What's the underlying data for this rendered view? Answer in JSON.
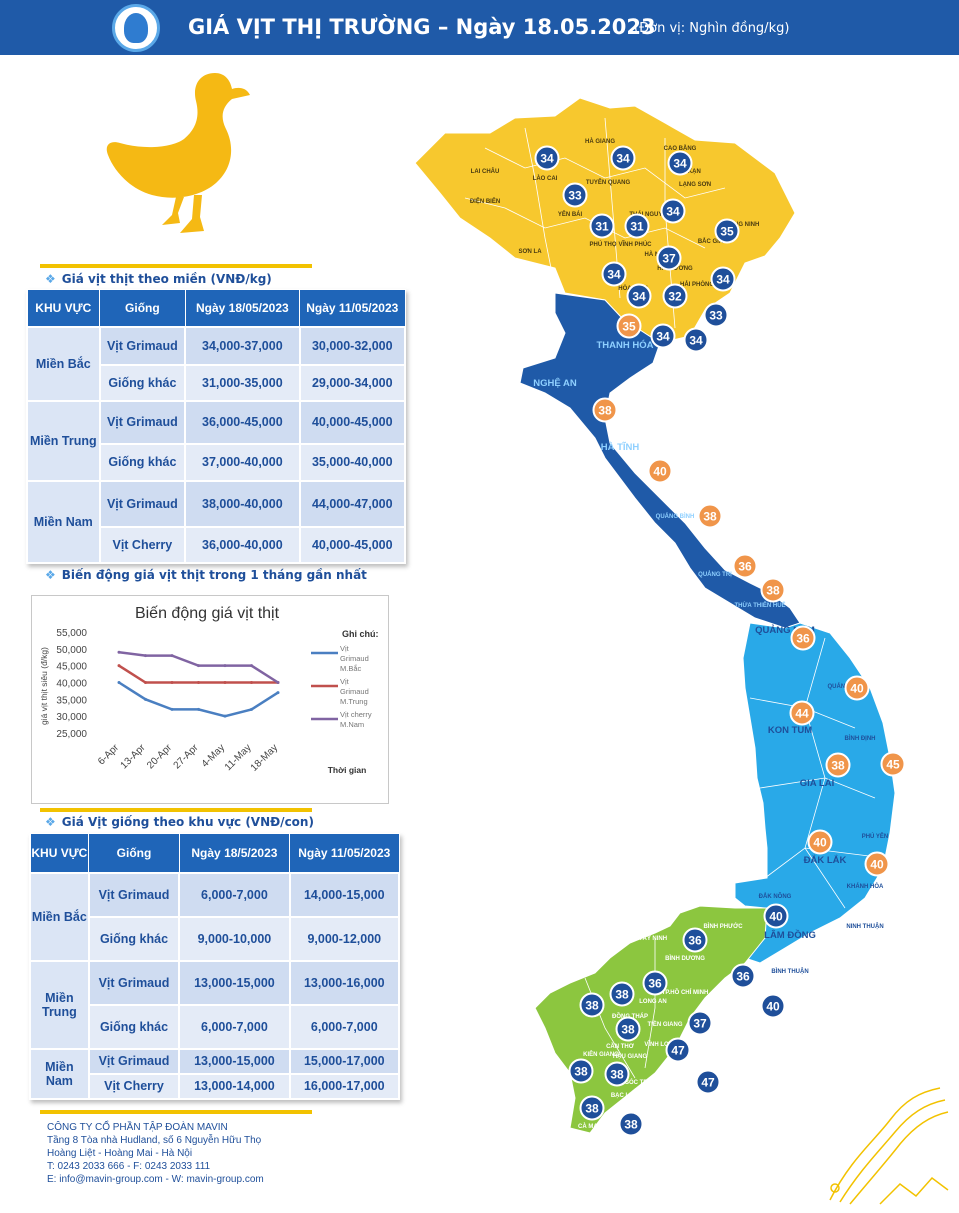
{
  "header": {
    "title": "GIÁ VỊT THỊ TRƯỜNG – Ngày 18.05.2023",
    "unit": "(Đơn vị: Nghìn đồng/kg)"
  },
  "section1": {
    "label": "Giá vịt thịt theo miền (VNĐ/kg)",
    "headers": [
      "KHU VỰC",
      "Giống",
      "Ngày 18/05/2023",
      "Ngày 11/05/2023"
    ],
    "regions": [
      {
        "name": "Miền Bắc",
        "rows": [
          {
            "breed": "Vịt Grimaud",
            "current": "34,000-37,000",
            "previous": "30,000-32,000"
          },
          {
            "breed": "Giống khác",
            "current": "31,000-35,000",
            "previous": "29,000-34,000"
          }
        ]
      },
      {
        "name": "Miền Trung",
        "rows": [
          {
            "breed": "Vịt Grimaud",
            "current": "36,000-45,000",
            "previous": "40,000-45,000"
          },
          {
            "breed": "Giống khác",
            "current": "37,000-40,000",
            "previous": "35,000-40,000"
          }
        ]
      },
      {
        "name": "Miền Nam",
        "rows": [
          {
            "breed": "Vịt Grimaud",
            "current": "38,000-40,000",
            "previous": "44,000-47,000"
          },
          {
            "breed": "Vịt Cherry",
            "current": "36,000-40,000",
            "previous": "40,000-45,000"
          }
        ]
      }
    ]
  },
  "section2": {
    "label": "Biến động giá vịt thịt trong 1 tháng gần nhất"
  },
  "chart_data": {
    "type": "line",
    "title": "Biến động giá vịt thịt",
    "ylabel": "giá vịt thịt siêu (đ/kg)",
    "xlabel": "Thời gian",
    "legend_title": "Ghi chú:",
    "legend_position": "right",
    "categories": [
      "6-Apr",
      "13-Apr",
      "20-Apr",
      "27-Apr",
      "4-May",
      "11-May",
      "18-May"
    ],
    "yticks": [
      "25,000",
      "30,000",
      "35,000",
      "40,000",
      "45,000",
      "50,000",
      "55,000"
    ],
    "ylim": [
      25000,
      55000
    ],
    "series": [
      {
        "name": "Vịt Grimaud M.Bắc",
        "color": "#4a7fc1",
        "values": [
          40000,
          35000,
          32000,
          32000,
          30000,
          32000,
          37000
        ]
      },
      {
        "name": "Vịt Grimaud M.Trung",
        "color": "#c0504d",
        "values": [
          45000,
          40000,
          40000,
          40000,
          40000,
          40000,
          40000
        ]
      },
      {
        "name": "Vịt cherry M.Nam",
        "color": "#8064a2",
        "values": [
          49000,
          48000,
          48000,
          45000,
          45000,
          45000,
          40000
        ]
      }
    ]
  },
  "section3": {
    "label": "Giá Vịt giống theo khu vực (VNĐ/con)",
    "headers": [
      "KHU VỰC",
      "Giống",
      "Ngày 18/5/2023",
      "Ngày 11/05/2023"
    ],
    "regions": [
      {
        "name": "Miền Bắc",
        "rows": [
          {
            "breed": "Vịt Grimaud",
            "current": "6,000-7,000",
            "previous": "14,000-15,000"
          },
          {
            "breed": "Giống khác",
            "current": "9,000-10,000",
            "previous": "9,000-12,000"
          }
        ]
      },
      {
        "name": "Miền Trung",
        "rows": [
          {
            "breed": "Vịt Grimaud",
            "current": "13,000-15,000",
            "previous": "13,000-16,000"
          },
          {
            "breed": "Giống khác",
            "current": "6,000-7,000",
            "previous": "6,000-7,000"
          }
        ]
      },
      {
        "name": "Miền Nam",
        "rows": [
          {
            "breed": "Vịt Grimaud",
            "current": "13,000-15,000",
            "previous": "15,000-17,000"
          },
          {
            "breed": "Vịt Cherry",
            "current": "13,000-14,000",
            "previous": "16,000-17,000"
          }
        ]
      }
    ]
  },
  "footer": {
    "company": "CÔNG TY CỔ PHẦN TẬP ĐOÀN MAVIN",
    "address1": "Tầng 8 Tòa nhà Hudland, số 6 Nguyễn Hữu Thọ",
    "address2": "Hoàng Liệt - Hoàng Mai - Hà Nội",
    "phone": "T: 0243 2033 666 - F: 0243 2033 111",
    "contact": "E: info@mavin-group.com - W: mavin-group.com"
  },
  "map": {
    "colors": {
      "north": "#f7c82e",
      "central_north": "#1f5aa8",
      "central_south": "#29a9e8",
      "south": "#8cc63f",
      "badge_dark": "#1f4f9a",
      "badge_orange": "#f0954a"
    },
    "labels": [
      {
        "text": "LAI CHÂU"
      },
      {
        "text": "HÀ GIANG"
      },
      {
        "text": "CAO BẰNG"
      },
      {
        "text": "LÀO CAI"
      },
      {
        "text": "TUYÊN QUANG"
      },
      {
        "text": "BẮC KẠN"
      },
      {
        "text": "LẠNG SƠN"
      },
      {
        "text": "ĐIỆN BIÊN"
      },
      {
        "text": "YÊN BÁI"
      },
      {
        "text": "THÁI NGUYÊN"
      },
      {
        "text": "SƠN LA"
      },
      {
        "text": "PHÚ THỌ"
      },
      {
        "text": "VĨNH PHÚC"
      },
      {
        "text": "BẮC GIANG"
      },
      {
        "text": "QUẢNG NINH"
      },
      {
        "text": "HÀ NỘI"
      },
      {
        "text": "HẢI DƯƠNG"
      },
      {
        "text": "HẢI PHÒNG"
      },
      {
        "text": "HÒA BÌNH"
      },
      {
        "text": "THANH HÓA"
      },
      {
        "text": "NGHỆ AN"
      },
      {
        "text": "HÀ TĨNH"
      },
      {
        "text": "QUẢNG BÌNH"
      },
      {
        "text": "QUẢNG TRỊ"
      },
      {
        "text": "THỪA THIÊN HUẾ"
      },
      {
        "text": "QUẢNG NAM"
      },
      {
        "text": "QUẢNG NGÃI"
      },
      {
        "text": "KON TUM"
      },
      {
        "text": "BÌNH ĐỊNH"
      },
      {
        "text": "GIA LAI"
      },
      {
        "text": "PHÚ YÊN"
      },
      {
        "text": "ĐẮK LẮK"
      },
      {
        "text": "KHÁNH HÒA"
      },
      {
        "text": "ĐẮK NÔNG"
      },
      {
        "text": "LÂM ĐỒNG"
      },
      {
        "text": "NINH THUẬN"
      },
      {
        "text": "BÌNH THUẬN"
      },
      {
        "text": "BÌNH PHƯỚC"
      },
      {
        "text": "TÂY NINH"
      },
      {
        "text": "BÌNH DƯƠNG"
      },
      {
        "text": "TP.HỒ CHÍ MINH"
      },
      {
        "text": "ĐỒNG NAI"
      },
      {
        "text": "BÀ RỊA VŨNG TÀU"
      },
      {
        "text": "ĐỒNG THÁP"
      },
      {
        "text": "LONG AN"
      },
      {
        "text": "TIỀN GIANG"
      },
      {
        "text": "CẦN THƠ"
      },
      {
        "text": "VĨNH LONG"
      },
      {
        "text": "BẾN TRE"
      },
      {
        "text": "KIÊN GIANG"
      },
      {
        "text": "HẬU GIANG"
      },
      {
        "text": "TRÀ VINH"
      },
      {
        "text": "SÓC TRĂNG"
      },
      {
        "text": "BẠC LIÊU"
      },
      {
        "text": "CÀ MAU"
      }
    ],
    "badges": [
      {
        "value": "34",
        "tone": "dark"
      },
      {
        "value": "34",
        "tone": "dark"
      },
      {
        "value": "34",
        "tone": "dark"
      },
      {
        "value": "33",
        "tone": "dark"
      },
      {
        "value": "34",
        "tone": "dark"
      },
      {
        "value": "31",
        "tone": "dark"
      },
      {
        "value": "31",
        "tone": "dark"
      },
      {
        "value": "35",
        "tone": "dark"
      },
      {
        "value": "37",
        "tone": "dark"
      },
      {
        "value": "34",
        "tone": "dark"
      },
      {
        "value": "34",
        "tone": "dark"
      },
      {
        "value": "34",
        "tone": "dark"
      },
      {
        "value": "32",
        "tone": "dark"
      },
      {
        "value": "33",
        "tone": "dark"
      },
      {
        "value": "35",
        "tone": "orange"
      },
      {
        "value": "34",
        "tone": "dark"
      },
      {
        "value": "34",
        "tone": "dark"
      },
      {
        "value": "38",
        "tone": "orange"
      },
      {
        "value": "40",
        "tone": "orange"
      },
      {
        "value": "38",
        "tone": "orange"
      },
      {
        "value": "36",
        "tone": "orange"
      },
      {
        "value": "38",
        "tone": "orange"
      },
      {
        "value": "36",
        "tone": "orange"
      },
      {
        "value": "40",
        "tone": "orange"
      },
      {
        "value": "44",
        "tone": "orange"
      },
      {
        "value": "38",
        "tone": "orange"
      },
      {
        "value": "45",
        "tone": "orange"
      },
      {
        "value": "40",
        "tone": "orange"
      },
      {
        "value": "40",
        "tone": "orange"
      },
      {
        "value": "40",
        "tone": "dark"
      },
      {
        "value": "36",
        "tone": "dark"
      },
      {
        "value": "36",
        "tone": "dark"
      },
      {
        "value": "36",
        "tone": "dark"
      },
      {
        "value": "36",
        "tone": "dark"
      },
      {
        "value": "38",
        "tone": "dark"
      },
      {
        "value": "38",
        "tone": "dark"
      },
      {
        "value": "38",
        "tone": "dark"
      },
      {
        "value": "37",
        "tone": "dark"
      },
      {
        "value": "47",
        "tone": "dark"
      },
      {
        "value": "38",
        "tone": "dark"
      },
      {
        "value": "38",
        "tone": "dark"
      },
      {
        "value": "47",
        "tone": "dark"
      },
      {
        "value": "38",
        "tone": "dark"
      },
      {
        "value": "38",
        "tone": "dark"
      },
      {
        "value": "40",
        "tone": "dark"
      }
    ]
  }
}
